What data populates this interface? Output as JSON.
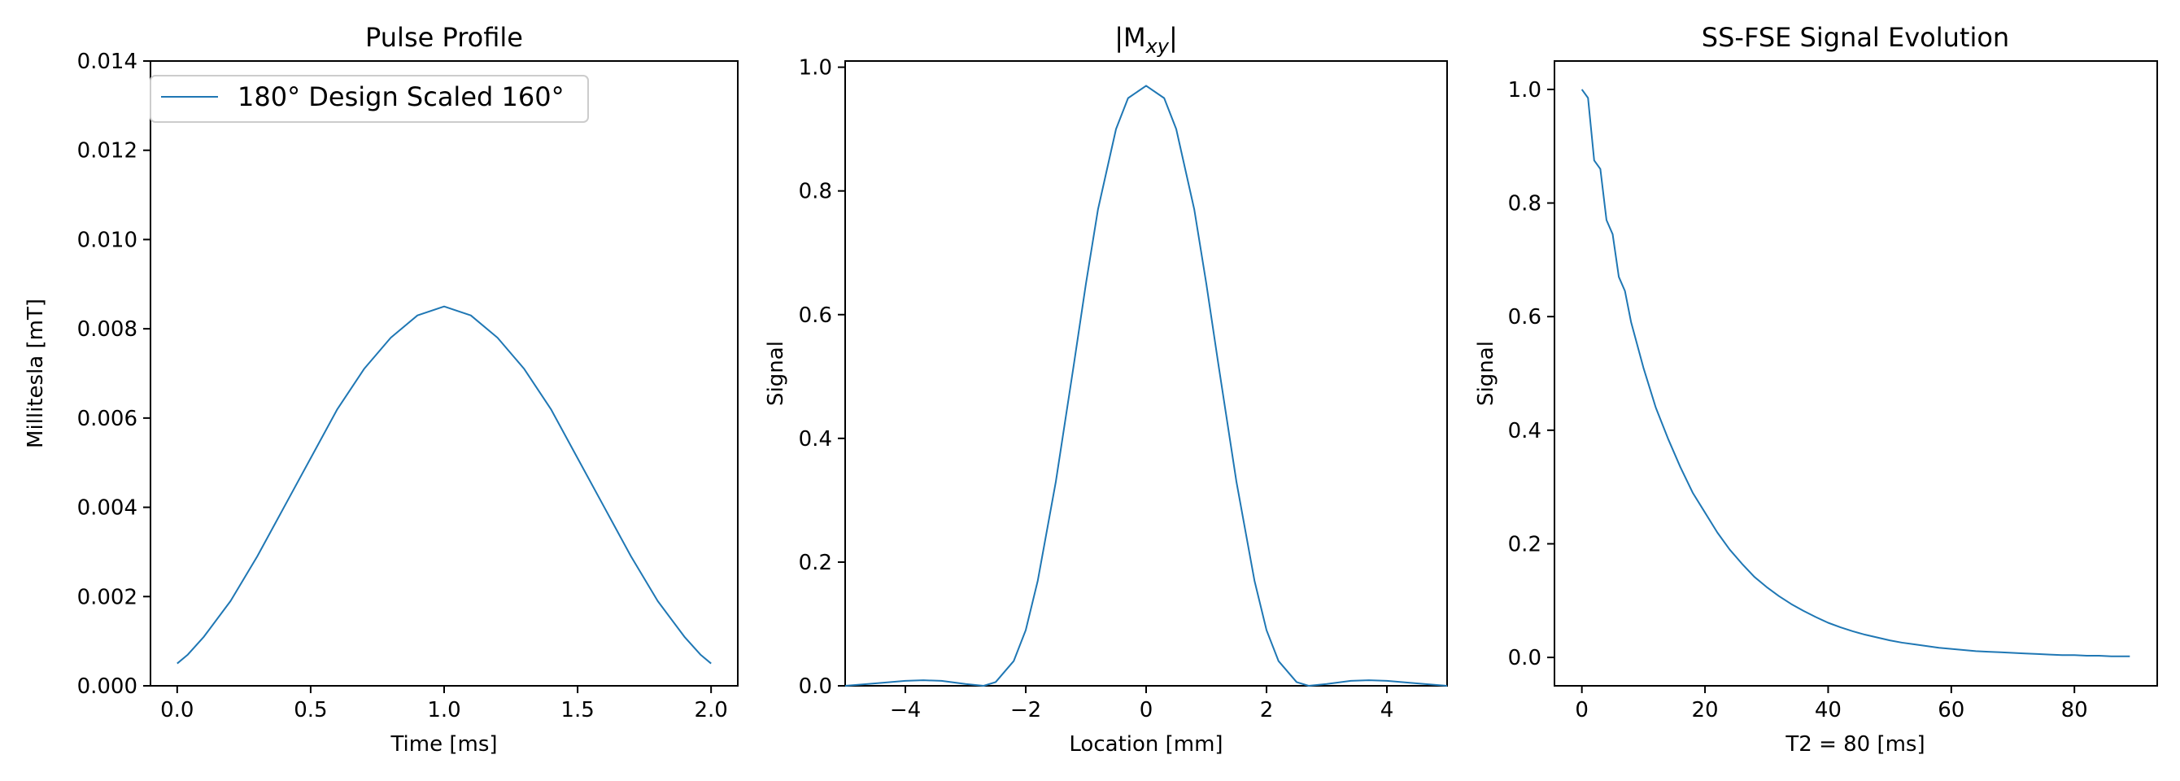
{
  "chart_data": [
    {
      "type": "line",
      "title": "Pulse Profile",
      "xlabel": "Time [ms]",
      "ylabel": "Millitesla [mT]",
      "xlim": [
        -0.1,
        2.1
      ],
      "ylim": [
        0,
        0.014
      ],
      "xticks": [
        0.0,
        0.5,
        1.0,
        1.5,
        2.0
      ],
      "xtick_labels": [
        "0.0",
        "0.5",
        "1.0",
        "1.5",
        "2.0"
      ],
      "yticks": [
        0,
        0.002,
        0.004,
        0.006,
        0.008,
        0.01,
        0.012,
        0.014
      ],
      "ytick_labels": [
        "0.000",
        "0.002",
        "0.004",
        "0.006",
        "0.008",
        "0.010",
        "0.012",
        "0.014"
      ],
      "grid": false,
      "legend": "top-left",
      "series": [
        {
          "name": "180° Design Scaled 160°",
          "color": "#1f77b4",
          "x": [
            0.0,
            0.04,
            0.1,
            0.2,
            0.3,
            0.4,
            0.5,
            0.6,
            0.7,
            0.8,
            0.9,
            1.0,
            1.1,
            1.2,
            1.3,
            1.4,
            1.5,
            1.6,
            1.7,
            1.8,
            1.9,
            1.96,
            2.0
          ],
          "y": [
            0.0005,
            0.0007,
            0.0011,
            0.0019,
            0.0029,
            0.004,
            0.0051,
            0.0062,
            0.0071,
            0.0078,
            0.0083,
            0.0085,
            0.0083,
            0.0078,
            0.0071,
            0.0062,
            0.0051,
            0.004,
            0.0029,
            0.0019,
            0.0011,
            0.0007,
            0.0005
          ]
        }
      ]
    },
    {
      "type": "line",
      "title": "|M",
      "title_sub": "xy",
      "title_end": "|",
      "xlabel": "Location [mm]",
      "ylabel": "Signal",
      "xlim": [
        -5,
        5
      ],
      "ylim": [
        0,
        1.01
      ],
      "xticks": [
        -4,
        -2,
        0,
        2,
        4
      ],
      "xtick_labels": [
        "−4",
        "−2",
        "0",
        "2",
        "4"
      ],
      "yticks": [
        0,
        0.2,
        0.4,
        0.6,
        0.8,
        1.0
      ],
      "ytick_labels": [
        "0.0",
        "0.2",
        "0.4",
        "0.6",
        "0.8",
        "1.0"
      ],
      "grid": false,
      "series": [
        {
          "color": "#1f77b4",
          "x": [
            -5.0,
            -4.5,
            -4.0,
            -3.7,
            -3.4,
            -3.0,
            -2.7,
            -2.5,
            -2.2,
            -2.0,
            -1.8,
            -1.5,
            -1.2,
            -1.0,
            -0.8,
            -0.5,
            -0.3,
            0.0,
            0.3,
            0.5,
            0.8,
            1.0,
            1.2,
            1.5,
            1.8,
            2.0,
            2.2,
            2.5,
            2.7,
            3.0,
            3.4,
            3.7,
            4.0,
            4.5,
            5.0
          ],
          "y": [
            0.0,
            0.004,
            0.008,
            0.009,
            0.008,
            0.003,
            0.0,
            0.006,
            0.04,
            0.09,
            0.17,
            0.33,
            0.52,
            0.65,
            0.77,
            0.9,
            0.95,
            0.97,
            0.95,
            0.9,
            0.77,
            0.65,
            0.52,
            0.33,
            0.17,
            0.09,
            0.04,
            0.006,
            0.0,
            0.003,
            0.008,
            0.009,
            0.008,
            0.004,
            0.0
          ]
        }
      ]
    },
    {
      "type": "line",
      "title": "SS-FSE Signal Evolution",
      "xlabel": "T2 = 80 [ms]",
      "ylabel": "Signal",
      "xlim": [
        -4.45,
        93.45
      ],
      "ylim": [
        -0.05,
        1.05
      ],
      "xticks": [
        0,
        20,
        40,
        60,
        80
      ],
      "xtick_labels": [
        "0",
        "20",
        "40",
        "60",
        "80"
      ],
      "yticks": [
        0,
        0.2,
        0.4,
        0.6,
        0.8,
        1.0
      ],
      "ytick_labels": [
        "0.0",
        "0.2",
        "0.4",
        "0.6",
        "0.8",
        "1.0"
      ],
      "grid": false,
      "series": [
        {
          "color": "#1f77b4",
          "x": [
            0,
            1,
            2,
            3,
            4,
            5,
            6,
            7,
            8,
            10,
            12,
            14,
            16,
            18,
            20,
            22,
            24,
            26,
            28,
            30,
            32,
            34,
            36,
            38,
            40,
            42,
            44,
            46,
            48,
            50,
            52,
            54,
            56,
            58,
            60,
            62,
            64,
            66,
            68,
            70,
            72,
            74,
            76,
            78,
            80,
            82,
            84,
            86,
            88,
            89
          ],
          "y": [
            1.0,
            0.985,
            0.875,
            0.86,
            0.77,
            0.745,
            0.67,
            0.645,
            0.59,
            0.51,
            0.44,
            0.385,
            0.335,
            0.29,
            0.255,
            0.22,
            0.19,
            0.165,
            0.142,
            0.124,
            0.108,
            0.094,
            0.082,
            0.071,
            0.061,
            0.053,
            0.046,
            0.04,
            0.035,
            0.03,
            0.026,
            0.023,
            0.02,
            0.017,
            0.015,
            0.013,
            0.011,
            0.01,
            0.009,
            0.008,
            0.007,
            0.006,
            0.005,
            0.004,
            0.004,
            0.003,
            0.003,
            0.002,
            0.002,
            0.002
          ]
        }
      ]
    }
  ]
}
